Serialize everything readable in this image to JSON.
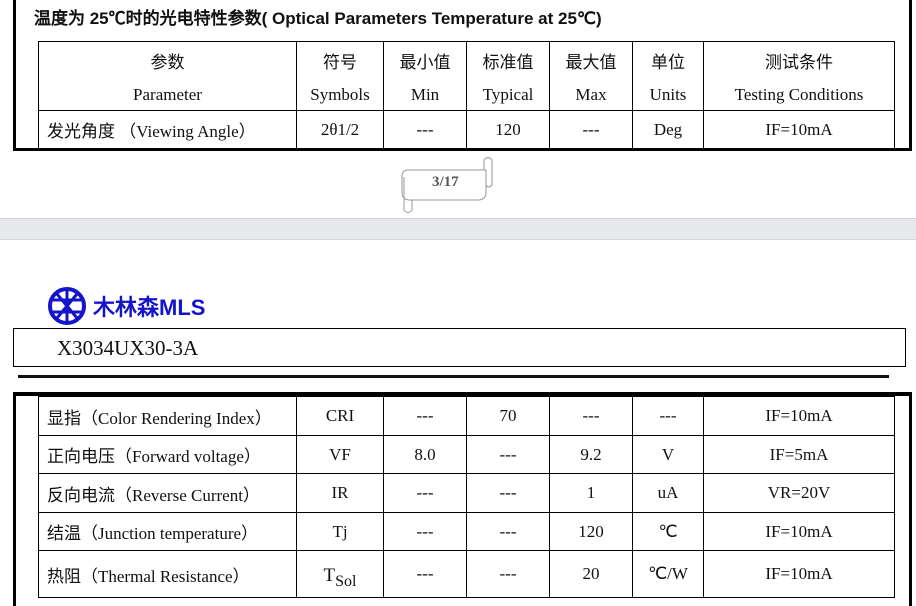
{
  "page3": {
    "section_title": "温度为 25℃时的光电特性参数( Optical Parameters Temperature at 25℃)",
    "headers_cn": [
      "参数",
      "符号",
      "最小值",
      "标准值",
      "最大值",
      "单位",
      "测试条件"
    ],
    "headers_en": [
      "Parameter",
      "Symbols",
      "Min",
      "Typical",
      "Max",
      "Units",
      "Testing Conditions"
    ],
    "row": [
      "发光角度 （Viewing Angle）",
      "2θ1/2",
      "---",
      "120",
      "---",
      "Deg",
      "IF=10mA"
    ],
    "page_number": "3/17"
  },
  "page4": {
    "logo_text": "木林森MLS",
    "model": "X3034UX30-3A",
    "rows": [
      [
        "显指（Color Rendering Index）",
        "CRI",
        "---",
        "70",
        "---",
        "---",
        "IF=10mA"
      ],
      [
        "正向电压（Forward voltage）",
        "VF",
        "8.0",
        "---",
        "9.2",
        "V",
        "IF=5mA"
      ],
      [
        "反向电流（Reverse Current）",
        "IR",
        "---",
        "---",
        "1",
        "uA",
        "VR=20V"
      ],
      [
        "结温（Junction temperature）",
        "Tj",
        "---",
        "---",
        "120",
        "℃",
        "IF=10mA"
      ],
      [
        "热阻（Thermal Resistance）",
        "TSol",
        "---",
        "---",
        "20",
        "℃/W",
        "IF=10mA"
      ]
    ]
  }
}
